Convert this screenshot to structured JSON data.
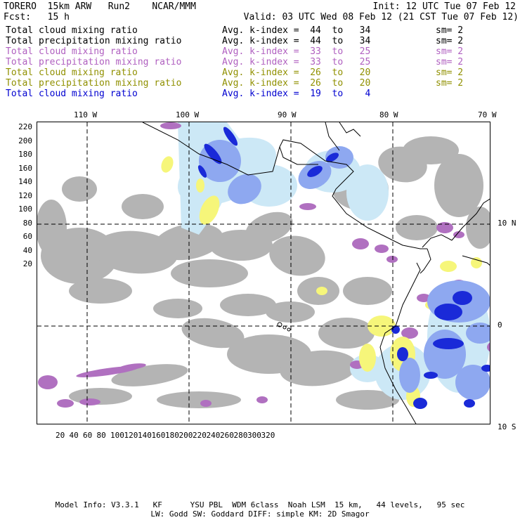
{
  "header": {
    "model": "TORERO  15km ARW   Run2    NCAR/MMM",
    "init": "Init: 12 UTC Tue 07 Feb 12",
    "fcst": "Fcst:   15 h",
    "valid": "Valid: 03 UTC Wed 08 Feb 12 (21 CST Tue 07 Feb 12)"
  },
  "legend": [
    {
      "field": "Total cloud mixing ratio",
      "index": "Avg. k-index =  44  to   34",
      "sm": "sm= 2",
      "color": "#000000"
    },
    {
      "field": "Total precipitation mixing ratio",
      "index": "Avg. k-index =  44  to   34",
      "sm": "sm= 2",
      "color": "#000000"
    },
    {
      "field": "Total cloud mixing ratio",
      "index": "Avg. k-index =  33  to   25",
      "sm": "sm= 2",
      "color": "#b060c0"
    },
    {
      "field": "Total precipitation mixing ratio",
      "index": "Avg. k-index =  33  to   25",
      "sm": "sm= 2",
      "color": "#b060c0"
    },
    {
      "field": "Total cloud mixing ratio",
      "index": "Avg. k-index =  26  to   20",
      "sm": "sm= 2",
      "color": "#909000"
    },
    {
      "field": "Total precipitation mixing ratio",
      "index": "Avg. k-index =  26  to   20",
      "sm": "sm= 2",
      "color": "#909000"
    },
    {
      "field": "Total cloud mixing ratio",
      "index": "Avg. k-index =  19  to    4",
      "sm": "",
      "color": "#0000d0"
    }
  ],
  "map": {
    "lon_labels": [
      "110 W",
      "100 W",
      "90 W",
      "80 W",
      "70 W"
    ],
    "lat_labels": [
      "10 N",
      "0",
      "10 S"
    ],
    "x_ticks": [
      "20",
      "40",
      "60",
      "80",
      "100",
      "120",
      "140",
      "160",
      "180",
      "200",
      "220",
      "240",
      "260",
      "280",
      "300",
      "320"
    ],
    "y_ticks": [
      "220",
      "200",
      "180",
      "160",
      "140",
      "120",
      "100",
      "80",
      "60",
      "40",
      "20"
    ],
    "colors": {
      "gray_cloud": "#b4b4b4",
      "purple": "#b070c0",
      "yellow": "#f6f67a",
      "light_blue": "#cce8f6",
      "mid_blue": "#8ea8f0",
      "dark_blue": "#1a2ad8"
    }
  },
  "footer": {
    "line1": "Model Info: V3.3.1   KF      YSU PBL  WDM 6class  Noah LSM  15 km,   44 levels,   95 sec",
    "line2": "LW: Godd SW: Goddard DIFF: simple KM: 2D Smagor"
  }
}
